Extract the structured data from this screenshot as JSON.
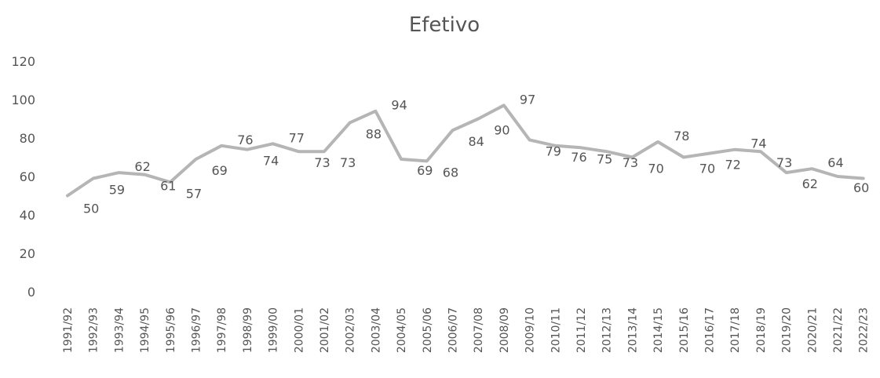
{
  "chart_data": {
    "type": "line",
    "title": "Efetivo",
    "xlabel": "",
    "ylabel": "",
    "ylim": [
      0,
      120
    ],
    "yticks": [
      "0",
      "20",
      "40",
      "60",
      "80",
      "100",
      "120"
    ],
    "grid": false,
    "legend": "none",
    "line_color": "#b5b5b5",
    "categories": [
      "1991/92",
      "1992/93",
      "1993/94",
      "1994/95",
      "1995/96",
      "1996/97",
      "1997/98",
      "1998/99",
      "1999/00",
      "2000/01",
      "2001/02",
      "2002/03",
      "2003/04",
      "2004/05",
      "2005/06",
      "2006/07",
      "2007/08",
      "2008/09",
      "2009/10",
      "2010/11",
      "2011/12",
      "2012/13",
      "2013/14",
      "2014/15",
      "2015/16",
      "2016/17",
      "2017/18",
      "2018/19",
      "2019/20",
      "2020/21",
      "2021/22",
      "2022/23"
    ],
    "values": [
      50,
      59,
      62,
      61,
      57,
      69,
      76,
      74,
      77,
      73,
      73,
      88,
      94,
      69,
      68,
      84,
      90,
      97,
      79,
      76,
      75,
      73,
      70,
      78,
      70,
      72,
      74,
      73,
      62,
      64,
      60,
      59
    ],
    "data_labels": [
      "50",
      "59",
      "62",
      "61",
      "57",
      "69",
      "76",
      "74",
      "77",
      "73",
      "73",
      "88",
      "94",
      "69",
      "68",
      "84",
      "90",
      "97",
      "79",
      "76",
      "75",
      "73",
      "70",
      "78",
      "70",
      "72",
      "74",
      "73",
      "62",
      "64",
      "60",
      "59"
    ]
  }
}
